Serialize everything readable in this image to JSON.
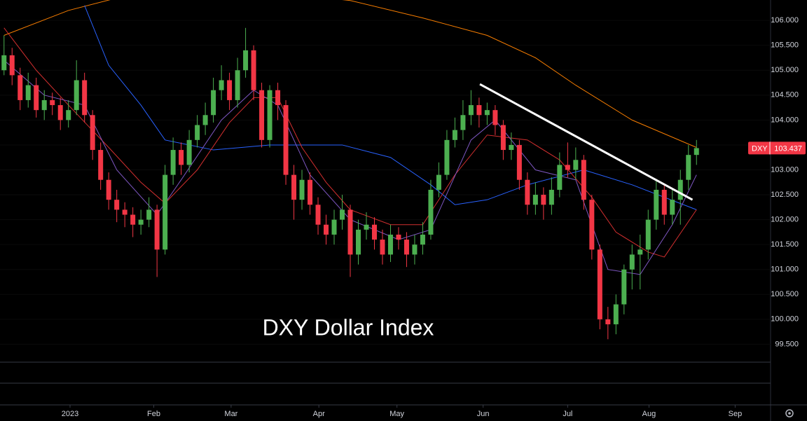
{
  "chart_data": {
    "type": "candlestick",
    "symbol": "DXY",
    "annotation": "DXY Dollar Index",
    "up_color": "#4caf50",
    "down_color": "#f23645",
    "open": [
      105.0,
      105.3,
      104.9,
      104.4,
      104.7,
      104.2,
      104.4,
      104.3,
      104.0,
      104.2,
      104.8,
      104.1,
      103.4,
      102.8,
      102.4,
      102.2,
      102.1,
      101.9,
      102.0,
      102.2,
      101.4,
      102.9,
      103.4,
      103.1,
      103.6,
      103.9,
      104.1,
      104.6,
      104.8,
      104.4,
      105.0,
      105.4,
      104.6,
      103.6,
      104.6,
      104.3,
      102.9,
      102.4,
      102.8,
      102.3,
      101.9,
      101.7,
      102.0,
      102.2,
      101.3,
      101.8,
      101.9,
      101.6,
      101.3,
      101.7,
      101.6,
      101.3,
      101.5,
      101.7,
      102.6,
      102.9,
      103.6,
      103.8,
      104.1,
      104.3,
      104.1,
      104.2,
      103.9,
      103.4,
      103.5,
      102.8,
      102.3,
      102.5,
      102.3,
      102.6,
      103.1,
      103.0,
      103.2,
      102.4,
      101.4,
      100.0,
      99.9,
      100.3,
      101.0,
      101.3,
      101.4,
      102.0,
      102.6,
      102.1,
      102.4,
      102.8,
      103.3
    ],
    "high": [
      105.7,
      105.45,
      105.05,
      104.95,
      104.85,
      104.6,
      104.55,
      104.45,
      104.4,
      105.2,
      104.95,
      104.2,
      103.55,
      102.95,
      102.6,
      102.35,
      102.25,
      102.2,
      102.45,
      102.3,
      103.1,
      103.65,
      103.55,
      103.8,
      104.1,
      104.35,
      104.85,
      105.1,
      104.95,
      105.25,
      105.85,
      105.5,
      104.75,
      104.7,
      104.75,
      104.4,
      103.1,
      103.0,
      102.95,
      102.45,
      102.1,
      102.2,
      102.5,
      102.3,
      102.0,
      102.15,
      102.05,
      101.8,
      101.9,
      101.85,
      101.75,
      101.7,
      101.95,
      102.8,
      103.15,
      103.8,
      104.05,
      104.4,
      104.6,
      104.45,
      104.35,
      104.3,
      104.0,
      103.75,
      103.6,
      102.95,
      102.75,
      102.65,
      102.85,
      103.35,
      103.55,
      103.45,
      103.3,
      102.5,
      101.5,
      100.25,
      100.5,
      101.1,
      101.5,
      101.7,
      102.2,
      102.8,
      102.7,
      102.6,
      103.0,
      103.5,
      103.6
    ],
    "low": [
      104.9,
      104.7,
      104.2,
      104.25,
      104.05,
      104.0,
      104.1,
      103.8,
      103.85,
      104.1,
      103.95,
      103.2,
      102.6,
      102.2,
      101.95,
      101.85,
      101.65,
      101.7,
      101.85,
      100.85,
      101.3,
      102.7,
      102.9,
      102.95,
      103.45,
      103.7,
      103.95,
      104.4,
      104.2,
      104.25,
      104.85,
      104.4,
      103.45,
      103.45,
      104.0,
      102.7,
      102.0,
      102.2,
      102.1,
      101.7,
      101.5,
      101.5,
      101.8,
      100.85,
      101.1,
      101.6,
      101.4,
      101.1,
      101.15,
      101.4,
      101.05,
      101.1,
      101.3,
      101.6,
      102.45,
      102.8,
      103.45,
      103.6,
      103.9,
      103.85,
      103.9,
      103.7,
      103.2,
      103.2,
      102.6,
      102.1,
      102.1,
      102.0,
      102.1,
      102.45,
      102.85,
      102.8,
      102.2,
      101.2,
      99.8,
      99.6,
      99.7,
      100.1,
      100.6,
      100.6,
      101.2,
      101.8,
      101.9,
      101.9,
      101.9,
      102.6,
      103.1
    ],
    "close": [
      105.3,
      104.9,
      104.4,
      104.7,
      104.2,
      104.4,
      104.3,
      104.0,
      104.2,
      104.8,
      104.1,
      103.4,
      102.8,
      102.4,
      102.2,
      102.1,
      101.9,
      102.0,
      102.2,
      101.4,
      102.9,
      103.4,
      103.1,
      103.6,
      103.9,
      104.1,
      104.6,
      104.8,
      104.4,
      105.0,
      105.4,
      104.6,
      103.6,
      104.6,
      104.3,
      102.9,
      102.4,
      102.8,
      102.3,
      101.9,
      101.7,
      102.0,
      102.2,
      101.3,
      101.8,
      101.9,
      101.6,
      101.3,
      101.7,
      101.6,
      101.3,
      101.5,
      101.7,
      102.6,
      102.9,
      103.6,
      103.8,
      104.1,
      104.3,
      104.1,
      104.2,
      103.9,
      103.4,
      103.5,
      102.8,
      102.3,
      102.5,
      102.3,
      102.6,
      103.1,
      103.0,
      103.2,
      102.4,
      101.4,
      100.0,
      99.9,
      100.3,
      101.0,
      101.3,
      101.4,
      102.0,
      102.6,
      102.1,
      102.4,
      102.8,
      103.3,
      103.437
    ],
    "moving_averages": [
      {
        "color": "#f57c00",
        "x": [
          0,
          8,
          14,
          25,
          43,
          52,
          60,
          66,
          71,
          78,
          86
        ],
        "values": [
          105.7,
          106.2,
          106.45,
          106.7,
          106.4,
          106.05,
          105.7,
          105.25,
          104.7,
          104.0,
          103.45
        ]
      },
      {
        "color": "#2962ff",
        "x": [
          10,
          13,
          17,
          20,
          26,
          33,
          42,
          48,
          53,
          56,
          60,
          65,
          72,
          78,
          86
        ],
        "values": [
          106.3,
          105.1,
          104.3,
          103.6,
          103.4,
          103.5,
          103.5,
          103.25,
          102.7,
          102.3,
          102.4,
          102.7,
          103.0,
          102.7,
          102.2
        ]
      },
      {
        "color": "#d32f2f",
        "x": [
          0,
          4,
          8,
          13,
          17,
          20,
          24,
          28,
          31,
          34,
          37,
          40,
          43,
          48,
          52,
          56,
          60,
          65,
          69,
          73,
          76,
          80,
          82,
          86
        ],
        "values": [
          105.85,
          105.0,
          104.3,
          103.45,
          102.75,
          102.33,
          103.0,
          103.95,
          104.45,
          104.45,
          103.45,
          102.75,
          102.2,
          101.9,
          101.9,
          102.9,
          103.7,
          103.6,
          103.2,
          102.45,
          101.75,
          101.35,
          101.25,
          102.2
        ]
      },
      {
        "color": "#7e57c2",
        "x": [
          0,
          5,
          10,
          14,
          19,
          22,
          27,
          31,
          34,
          38,
          43,
          49,
          53,
          58,
          61,
          66,
          71,
          75,
          79,
          83,
          86
        ],
        "values": [
          105.2,
          104.5,
          104.3,
          103.0,
          102.1,
          102.8,
          104.0,
          104.6,
          104.3,
          102.9,
          102.0,
          101.6,
          101.8,
          103.6,
          104.0,
          103.0,
          102.8,
          101.0,
          100.9,
          101.9,
          102.9
        ]
      }
    ],
    "trendline": {
      "color": "#ffffff",
      "x": [
        59.1,
        85.5
      ],
      "values": [
        104.72,
        102.4
      ]
    },
    "xlim": [
      -0.5,
      95.2
    ],
    "ylim": [
      99.14,
      106.41
    ],
    "xticks": [
      {
        "value": 8.2,
        "label": "2023"
      },
      {
        "value": 18.6,
        "label": "Feb"
      },
      {
        "value": 28.2,
        "label": "Mar"
      },
      {
        "value": 39.1,
        "label": "Apr"
      },
      {
        "value": 48.8,
        "label": "May"
      },
      {
        "value": 59.5,
        "label": "Jun"
      },
      {
        "value": 70,
        "label": "Jul"
      },
      {
        "value": 80.1,
        "label": "Aug"
      },
      {
        "value": 90.8,
        "label": "Sep"
      }
    ],
    "yticks": [
      {
        "value": 99.5,
        "label": "99.500"
      },
      {
        "value": 100,
        "label": "100.000"
      },
      {
        "value": 100.5,
        "label": "100.500"
      },
      {
        "value": 101,
        "label": "101.000"
      },
      {
        "value": 101.5,
        "label": "101.500"
      },
      {
        "value": 102,
        "label": "102.000"
      },
      {
        "value": 102.5,
        "label": "102.500"
      },
      {
        "value": 103,
        "label": "103.000"
      },
      {
        "value": 103.5,
        "label": "103.500"
      },
      {
        "value": 104,
        "label": "104.000"
      },
      {
        "value": 104.5,
        "label": "104.500"
      },
      {
        "value": 105,
        "label": "105.000"
      },
      {
        "value": 105.5,
        "label": "105.500"
      },
      {
        "value": 106,
        "label": "106.000"
      }
    ]
  }
}
